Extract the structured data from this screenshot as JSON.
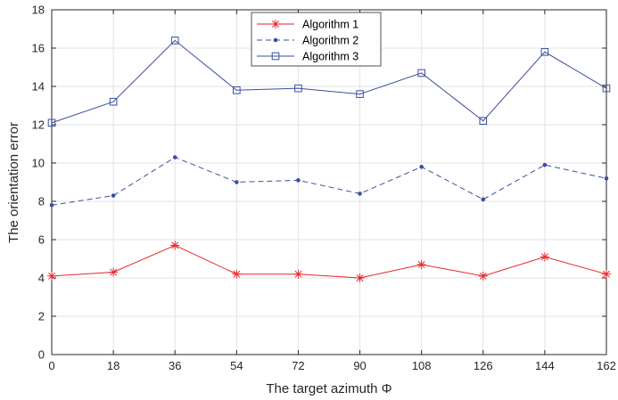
{
  "chart_data": {
    "type": "line",
    "title": "",
    "xlabel": "The target azimuth Φ",
    "ylabel": "The orientation error",
    "x": [
      0,
      18,
      36,
      54,
      72,
      90,
      108,
      126,
      144,
      162
    ],
    "xticks": [
      "0",
      "18",
      "36",
      "54",
      "72",
      "90",
      "108",
      "126",
      "144",
      "162"
    ],
    "yticks": [
      "0",
      "2",
      "4",
      "6",
      "8",
      "10",
      "12",
      "14",
      "16",
      "18"
    ],
    "xlim": [
      0,
      162
    ],
    "ylim": [
      0,
      18
    ],
    "grid": true,
    "legend_position": "top-center",
    "series": [
      {
        "name": "Algorithm 1",
        "color": "#e8262b",
        "line_style": "solid",
        "marker": "asterisk",
        "values": [
          4.1,
          4.3,
          5.7,
          4.2,
          4.2,
          4.0,
          4.7,
          4.1,
          5.1,
          4.2
        ]
      },
      {
        "name": "Algorithm 2",
        "color": "#3a4f9e",
        "line_style": "dashed",
        "marker": "dot",
        "values": [
          7.8,
          8.3,
          10.3,
          9.0,
          9.1,
          8.4,
          9.8,
          8.1,
          9.9,
          9.2
        ]
      },
      {
        "name": "Algorithm 3",
        "color": "#3a4f9e",
        "line_style": "solid",
        "marker": "square",
        "values": [
          12.1,
          13.2,
          16.4,
          13.8,
          13.9,
          13.6,
          14.7,
          12.2,
          15.8,
          13.9
        ]
      }
    ]
  }
}
